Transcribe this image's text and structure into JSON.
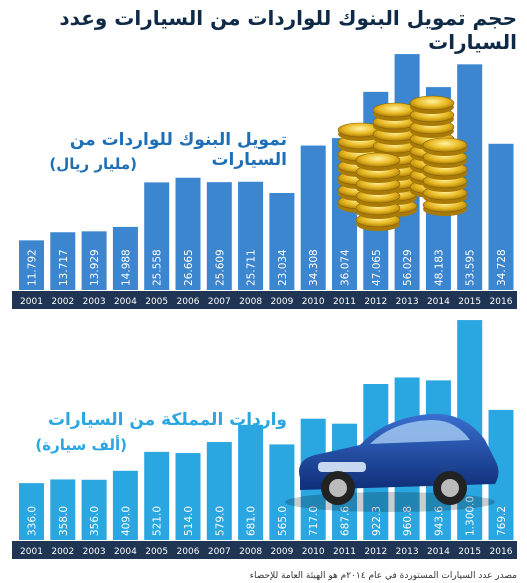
{
  "title": "حجم تمويل البنوك للواردات من السيارات وعدد السيارات",
  "source_note": "مصدر عدد السيارات المستوردة في عام ٢٠١٤م هو الهيئة العامة للإحصاء",
  "colors": {
    "financing_bar": "#3c86cf",
    "imports_bar": "#2aa6e0",
    "axis_band": "#1f3553",
    "title_text": "#0f2a47",
    "finance_label": "#1f6fb5",
    "imports_label": "#2aa6e0"
  },
  "chart_data": [
    {
      "type": "bar",
      "title": "تمويل البنوك للواردات من السيارات",
      "unit": "(مليار ريال)",
      "categories": [
        "2001",
        "2002",
        "2003",
        "2004",
        "2005",
        "2006",
        "2007",
        "2008",
        "2009",
        "2010",
        "2011",
        "2012",
        "2013",
        "2014",
        "2015",
        "2016"
      ],
      "values": [
        11.792,
        13.717,
        13.929,
        14.988,
        25.558,
        26.665,
        25.609,
        25.711,
        23.034,
        34.308,
        36.074,
        47.065,
        56.029,
        48.183,
        53.595,
        34.728
      ],
      "value_labels": [
        "11.792",
        "13.717",
        "13.929",
        "14.988",
        "25.558",
        "26.665",
        "25.609",
        "25.711",
        "23.034",
        "34.308",
        "36.074",
        "47.065",
        "56.029",
        "48.183",
        "53.595",
        "34.728"
      ],
      "ylim": [
        0,
        57
      ]
    },
    {
      "type": "bar",
      "title": "واردات المملكة من السيارات",
      "unit": "(ألف سيارة)",
      "categories": [
        "2001",
        "2002",
        "2003",
        "2004",
        "2005",
        "2006",
        "2007",
        "2008",
        "2009",
        "2010",
        "2011",
        "2012",
        "2013",
        "2014",
        "2015",
        "2016"
      ],
      "values": [
        336.0,
        358.0,
        356.0,
        409.0,
        521.0,
        514.0,
        579.0,
        681.0,
        565.0,
        717.0,
        687.6,
        922.3,
        960.8,
        943.6,
        1300.0,
        769.2
      ],
      "value_labels": [
        "336.0",
        "358.0",
        "356.0",
        "409.0",
        "521.0",
        "514.0",
        "579.0",
        "681.0",
        "565.0",
        "717.0",
        "687.6",
        "922.3",
        "960.8",
        "943.6",
        "1.300.0",
        "769.2"
      ],
      "ylim": [
        0,
        1330
      ]
    }
  ]
}
